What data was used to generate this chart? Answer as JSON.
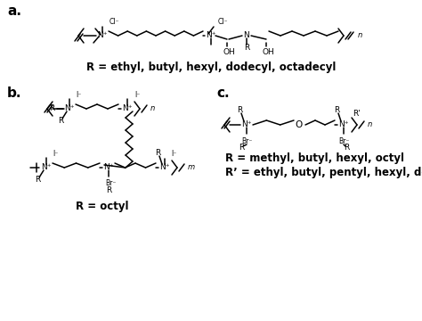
{
  "bg_color": "#ffffff",
  "label_a": "a.",
  "label_b": "b.",
  "label_c": "c.",
  "caption_a": "R = ethyl, butyl, hexyl, dodecyl, octadecyl",
  "caption_b": "R = octyl",
  "caption_c1": "R = methyl, butyl, hexyl, octyl",
  "caption_c2": "R’ = ethyl, butyl, pentyl, hexyl, decyl, dodecyl",
  "font_size_label": 11,
  "font_size_caption": 7.0,
  "font_size_struct": 6.5,
  "text_color": "#000000"
}
